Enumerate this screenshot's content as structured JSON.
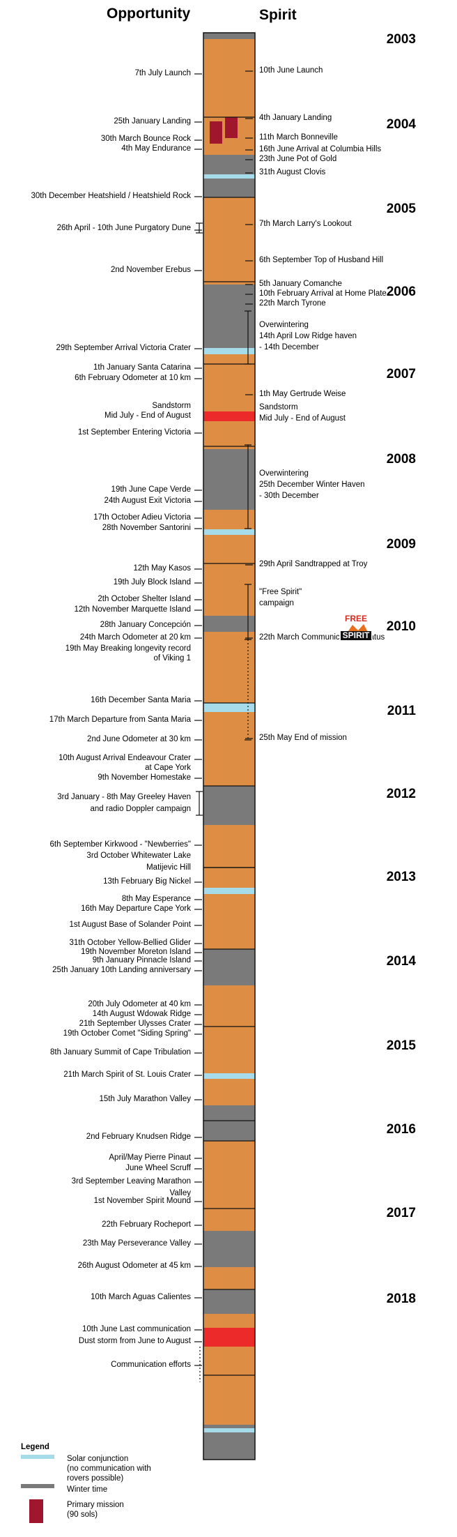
{
  "header": {
    "opportunity": "Opportunity",
    "spirit": "Spirit"
  },
  "years": [
    "2003",
    "2004",
    "2005",
    "2006",
    "2007",
    "2008",
    "2009",
    "2010",
    "2011",
    "2012",
    "2013",
    "2014",
    "2015",
    "2016",
    "2017",
    "2018"
  ],
  "opportunity_events": [
    [
      "7th July Launch"
    ],
    [
      "25th January  Landing"
    ],
    [
      "30th March  Bounce Rock"
    ],
    [
      "4th May Endurance"
    ],
    [
      "30th December Heatshield / Heatshield Rock"
    ],
    [
      "26th April - 10th  June Purgatory Dune"
    ],
    [
      "2nd November  Erebus"
    ],
    [
      "29th September Arrival Victoria Crater"
    ],
    [
      "1th January Santa Catarina"
    ],
    [
      "6th February Odometer at 10 km"
    ],
    [
      "Sandstorm",
      "Mid July - End of August"
    ],
    [
      "1st September Entering Victoria"
    ],
    [
      "19th June Cape Verde"
    ],
    [
      "24th August Exit Victoria"
    ],
    [
      "17th October  Adieu Victoria"
    ],
    [
      "28th November  Santorini"
    ],
    [
      "12th  May Kasos"
    ],
    [
      "19th July Block Island"
    ],
    [
      "2th October  Shelter Island"
    ],
    [
      "12th November  Marquette Island"
    ],
    [
      "28th January  Concepción"
    ],
    [
      "24th March Odometer at 20 km"
    ],
    [
      "19th May Breaking longevity record",
      "of Viking 1"
    ],
    [
      "16th December Santa Maria"
    ],
    [
      "17th March Departure from Santa Maria"
    ],
    [
      "2nd June Odometer at 30 km"
    ],
    [
      "10th August Arrival Endeavour Crater",
      "at Cape York"
    ],
    [
      "9th November Homestake"
    ],
    [
      "3rd January - 8th May   Greeley Haven",
      "and radio Doppler campaign"
    ],
    [
      "6th September   Kirkwood - \"Newberries\""
    ],
    [
      "3rd October  Whitewater Lake",
      "Matijevic Hill"
    ],
    [
      "13th February Big Nickel"
    ],
    [
      "8th May Esperance"
    ],
    [
      "16th May Departure Cape York"
    ],
    [
      "1st August Base of Solander Point"
    ],
    [
      "31th October Yellow-Bellied Glider"
    ],
    [
      "19th November Moreton Island"
    ],
    [
      "9th January   Pinnacle Island"
    ],
    [
      "25th January   10th Landing anniversary"
    ],
    [
      "20th July Odometer at 40 km"
    ],
    [
      "14th August  Wdowak Ridge"
    ],
    [
      "21th September  Ulysses Crater"
    ],
    [
      "19th October Comet \"Siding Spring\""
    ],
    [
      "8th January Summit of Cape Tribulation"
    ],
    [
      "21th March  Spirit of St. Louis Crater"
    ],
    [
      "15th July  Marathon Valley"
    ],
    [
      "2nd February  Knudsen Ridge"
    ],
    [
      "April/May   Pierre Pinaut"
    ],
    [
      "June   Wheel Scruff"
    ],
    [
      "3rd September Leaving Marathon",
      "Valley"
    ],
    [
      "1st November Spirit Mound"
    ],
    [
      "22th February Rocheport"
    ],
    [
      "23th May Perseverance Valley"
    ],
    [
      "26th August Odometer at 45 km"
    ],
    [
      "10th March Aguas Calientes"
    ],
    [
      "10th June Last communication"
    ],
    [
      "Dust storm from June to August"
    ],
    [
      "Communication efforts"
    ]
  ],
  "spirit_events": [
    [
      "10th June  Launch"
    ],
    [
      "4th January  Landing"
    ],
    [
      "11th March  Bonneville"
    ],
    [
      "16th June  Arrival at Columbia Hills"
    ],
    [
      "23th June Pot of Gold"
    ],
    [
      "31th August  Clovis"
    ],
    [
      "7th March  Larry's Lookout"
    ],
    [
      "6th September  Top of Husband Hill"
    ],
    [
      "5th January  Comanche"
    ],
    [
      "10th February  Arrival at Home Plate"
    ],
    [
      "22th March  Tyrone"
    ],
    [
      "Overwintering",
      "14th April  Low Ridge haven",
      "- 14th December"
    ],
    [
      "1th May  Gertrude Weise"
    ],
    [
      "Sandstorm",
      "Mid July - End of August"
    ],
    [
      "Overwintering",
      "25th December  Winter Haven",
      "- 30th December"
    ],
    [
      "29th April Sandtrapped at Troy"
    ],
    [
      "\"Free Spirit\"",
      "campaign"
    ],
    [
      "22th March  Communications hiatus"
    ],
    [
      "25th May   End of mission"
    ]
  ],
  "logo": {
    "line1": "FREE",
    "line2": "SPIRIT"
  },
  "legend": {
    "title": "Legend",
    "items": [
      {
        "kind": "conjunction",
        "color": "#a6dcea",
        "lines": [
          "Solar conjunction",
          "(no communication with",
          "rovers possible)"
        ]
      },
      {
        "kind": "winter",
        "color": "#7a7a7a",
        "lines": [
          "Winter time"
        ]
      },
      {
        "kind": "primary",
        "color": "#a0162d",
        "lines": [
          "Primary mission",
          "(90 sols)"
        ]
      }
    ]
  },
  "colors": {
    "active": "#dd8d44",
    "winter": "#7a7a7a",
    "conjunction": "#a6dcea",
    "storm": "#ec2a2a",
    "primary": "#a0162d"
  }
}
